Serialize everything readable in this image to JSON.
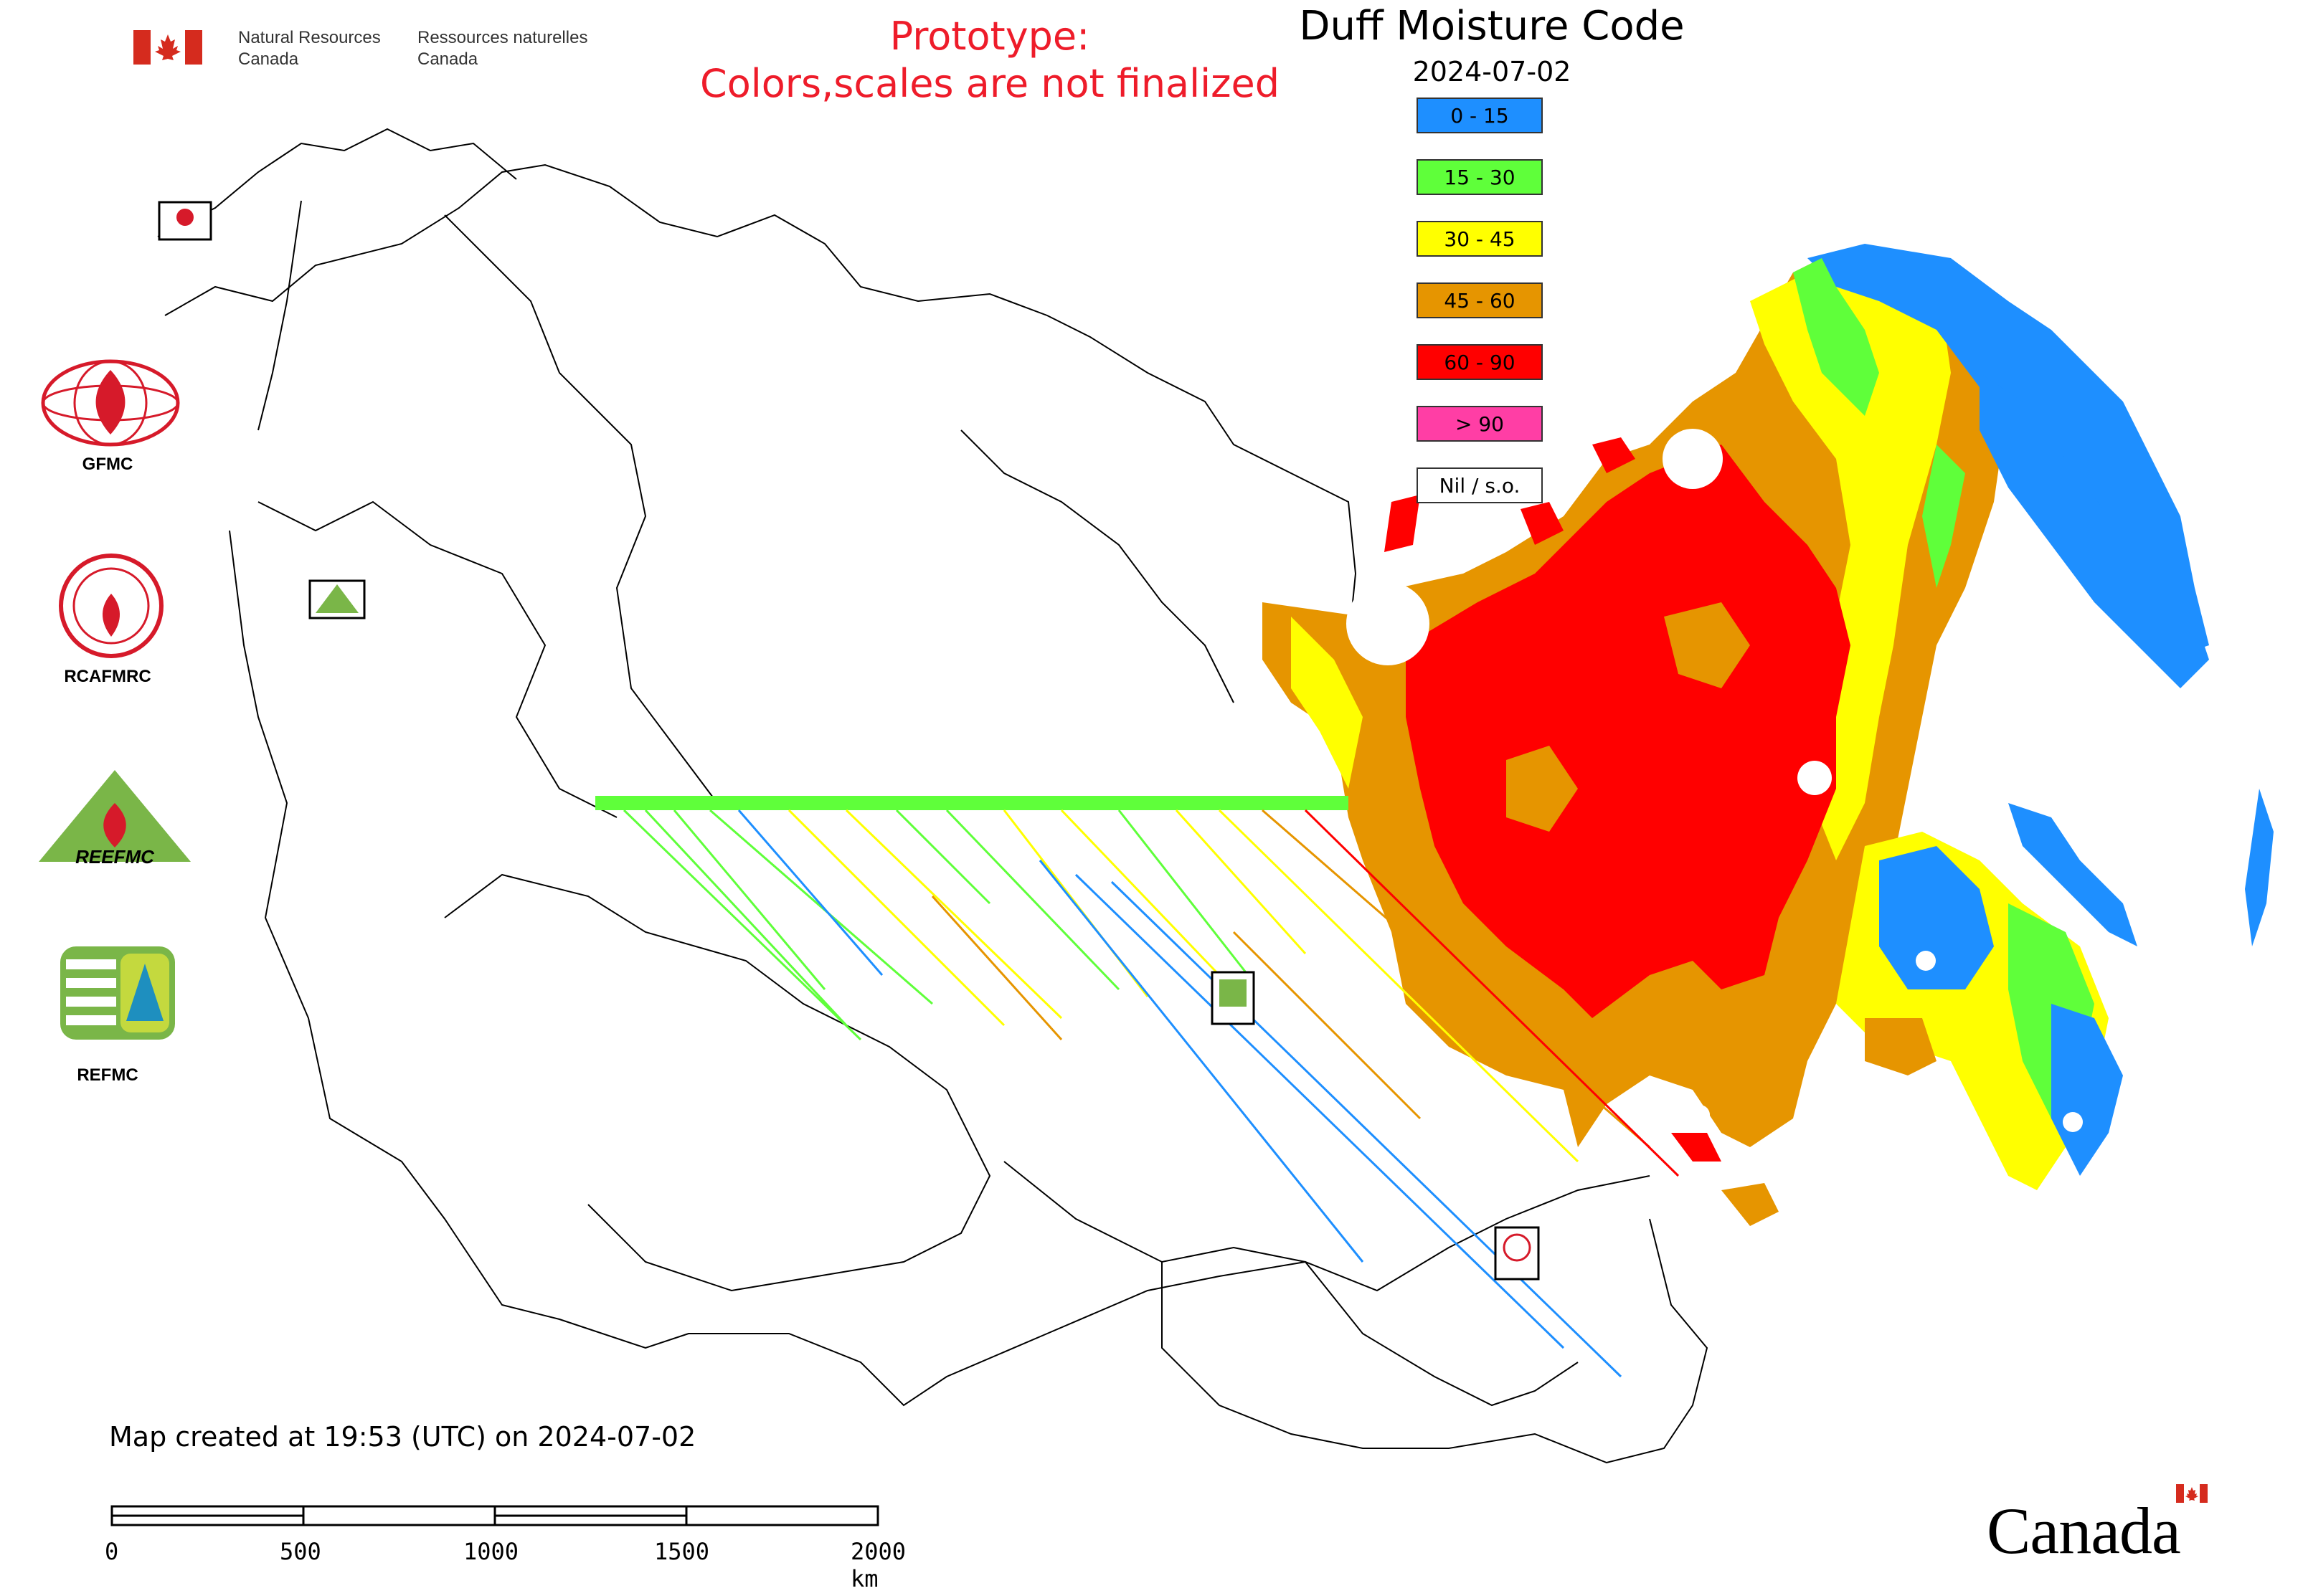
{
  "header": {
    "gov_en_line1": "Natural Resources",
    "gov_en_line2": "Canada",
    "gov_fr_line1": "Ressources naturelles",
    "gov_fr_line2": "Canada",
    "prototype_line1": "Prototype:",
    "prototype_line2": "Colors,scales are not finalized"
  },
  "map": {
    "title": "Duff Moisture Code",
    "date": "2024-07-02",
    "legend": [
      {
        "label": "0 - 15",
        "color": "#1e8fff"
      },
      {
        "label": "15 - 30",
        "color": "#5fff3a"
      },
      {
        "label": "30 - 45",
        "color": "#ffff00"
      },
      {
        "label": "45 - 60",
        "color": "#e69500"
      },
      {
        "label": "60 - 90",
        "color": "#ff0000"
      },
      {
        "label": "> 90",
        "color": "#ff3ea5"
      },
      {
        "label": "Nil / s.o.",
        "color": "#ffffff"
      }
    ]
  },
  "logos": [
    {
      "label": "GFMC",
      "icon": "gfmc-logo-icon"
    },
    {
      "label": "RCAFMRC",
      "icon": "rcafmrc-logo-icon"
    },
    {
      "label": "",
      "icon": "reefmc-logo-icon",
      "text": "REEFMC"
    },
    {
      "label": "REFMC",
      "icon": "refmc-logo-icon"
    }
  ],
  "footer": {
    "created": "Map created at 19:53 (UTC) on 2024-07-02",
    "scale_labels": [
      "0",
      "500",
      "1000",
      "1500",
      "2000 km"
    ],
    "wordmark": "Canada"
  }
}
